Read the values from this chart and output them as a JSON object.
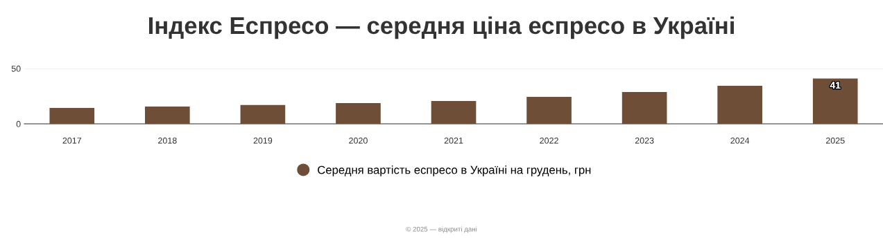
{
  "chart_data": {
    "type": "bar",
    "title": "Індекс Еспресо — середня ціна еспресо в Україні",
    "categories": [
      "2017",
      "2018",
      "2019",
      "2020",
      "2021",
      "2022",
      "2023",
      "2024",
      "2025"
    ],
    "series": [
      {
        "name": "Середня вартість еспресо в Україні на грудень, грн",
        "color": "#6f4e37",
        "values": [
          14.4,
          15.6,
          17,
          18.8,
          20.6,
          24.4,
          28.8,
          34.4,
          41
        ],
        "value_labels": [
          null,
          null,
          null,
          null,
          null,
          null,
          null,
          null,
          "41"
        ]
      }
    ],
    "ylim": [
      0,
      50
    ],
    "yticks": [
      0,
      50
    ],
    "grid": "y",
    "legend": "bottom",
    "annotations": [
      "© 2025 — відкриті дані"
    ]
  }
}
